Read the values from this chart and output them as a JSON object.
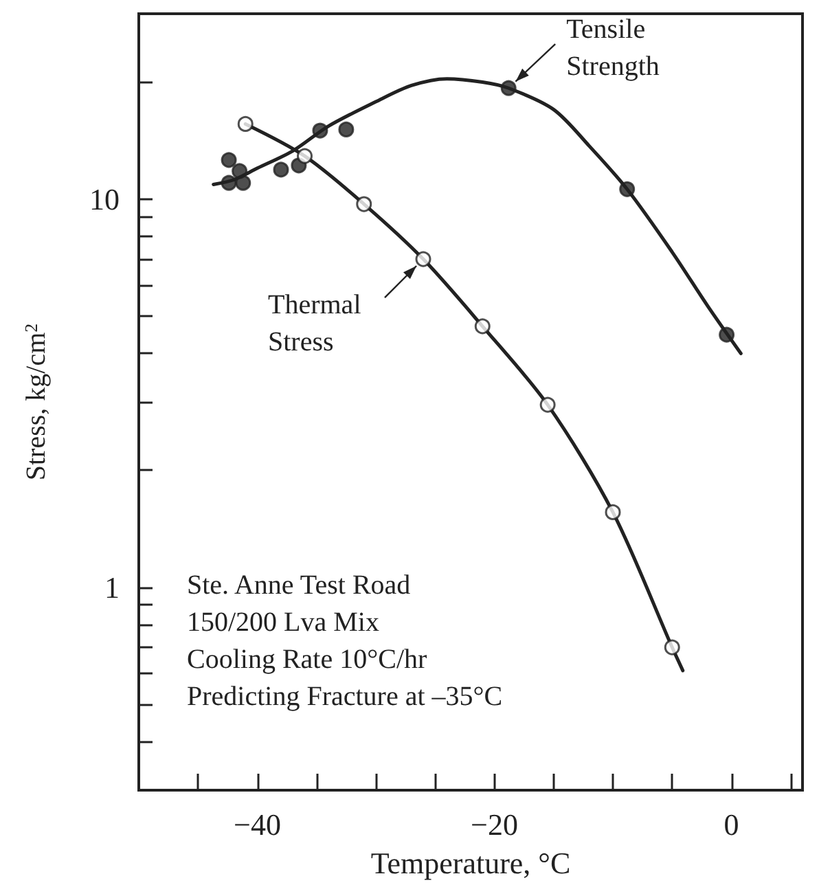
{
  "chart_data": {
    "type": "scatter",
    "xlabel": "Temperature, °C",
    "ylabel": "Stress, kg/cm$^{2}$",
    "xlim": [
      -50,
      6
    ],
    "xticks": [
      {
        "value": -45,
        "label": null
      },
      -40,
      {
        "value": -35,
        "label": null
      },
      {
        "value": -30,
        "label": null
      },
      {
        "value": -25,
        "label": null
      },
      -20,
      {
        "value": -15,
        "label": null
      },
      {
        "value": -10,
        "label": null
      },
      {
        "value": -5,
        "label": null
      },
      0,
      {
        "value": 5,
        "label": null
      }
    ],
    "ylim": [
      0.3,
      30
    ],
    "log": true,
    "yticks": [
      {
        "value": 0.4,
        "label": null
      },
      {
        "value": 0.5,
        "label": null
      },
      {
        "value": 0.6,
        "label": null
      },
      {
        "value": 0.7,
        "label": null
      },
      {
        "value": 0.8,
        "label": null
      },
      {
        "value": 0.9,
        "label": null
      },
      1,
      {
        "value": 2,
        "label": null
      },
      {
        "value": 3,
        "label": null
      },
      {
        "value": 4,
        "label": null
      },
      {
        "value": 5,
        "label": null
      },
      {
        "value": 6,
        "label": null
      },
      {
        "value": 7,
        "label": null
      },
      {
        "value": 8,
        "label": null
      },
      {
        "value": 9,
        "label": null
      },
      10,
      {
        "value": 20,
        "label": null
      }
    ],
    "grid": false,
    "series": [
      {
        "type": "line",
        "marker": "none",
        "color": "#222222",
        "x": [
          -43.7,
          -42,
          -40,
          -37,
          -34,
          -30,
          -27,
          -24,
          -21,
          -18.8,
          -15,
          -12,
          -8.8,
          -5,
          -2,
          0.8
        ],
        "values": [
          10.9,
          11.2,
          12.0,
          13.3,
          15.4,
          17.8,
          19.6,
          20.4,
          20.0,
          19.3,
          17.0,
          13.7,
          10.6,
          7.3,
          5.3,
          4.0
        ]
      },
      {
        "marker": "circle",
        "color": "#222222",
        "x": [
          -42.4,
          -42.4,
          -41.5,
          -41.2,
          -38.0,
          -36.5,
          -34.7,
          -32.5,
          -18.8,
          -8.8,
          -0.4
        ],
        "values": [
          12.6,
          11.0,
          11.8,
          11.0,
          11.9,
          12.2,
          15.0,
          15.1,
          19.3,
          10.6,
          4.47
        ]
      },
      {
        "type": "line",
        "marker": "none",
        "color": "#222222",
        "x": [
          -41,
          -36,
          -31,
          -26,
          -21,
          -15.5,
          -10,
          -5,
          -4.1
        ],
        "values": [
          15.6,
          12.9,
          9.7,
          7.0,
          4.7,
          2.95,
          1.56,
          0.7,
          0.61
        ]
      },
      {
        "marker": "circle",
        "color": "#ffffff",
        "x": [
          -41,
          -36,
          -31,
          -26,
          -21,
          -15.5,
          -10,
          -5
        ],
        "values": [
          15.6,
          12.9,
          9.7,
          7.0,
          4.7,
          2.95,
          1.56,
          0.7
        ]
      }
    ],
    "annotations": [
      {
        "text": "Tensile\nStrength",
        "x": -18.8,
        "y": 19.3
      },
      {
        "text": "Thermal\nStress",
        "x": -26,
        "y": 7.0
      },
      "Ste. Anne Test Road",
      "150/200 Lva Mix",
      "Cooling Rate 10°C/hr",
      "Predicting Fracture at –35°C"
    ]
  }
}
